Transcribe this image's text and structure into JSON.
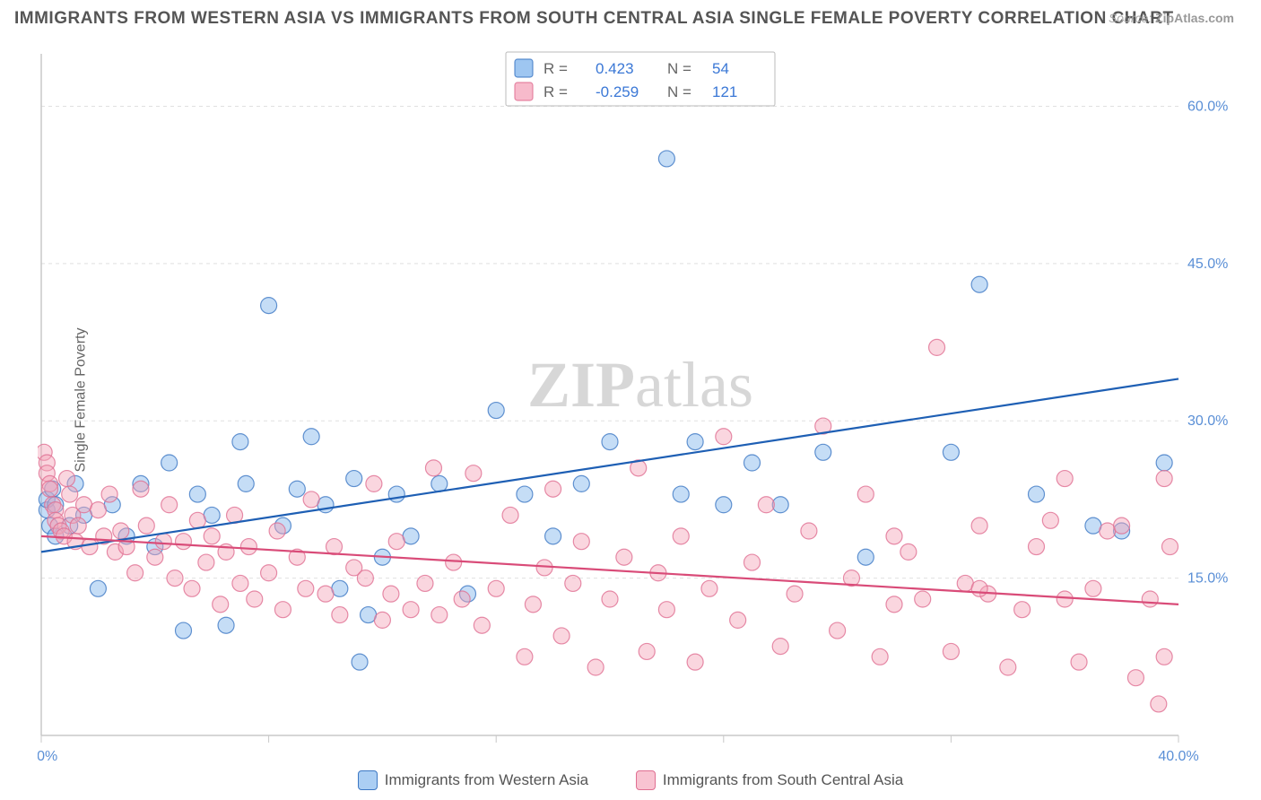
{
  "title": "IMMIGRANTS FROM WESTERN ASIA VS IMMIGRANTS FROM SOUTH CENTRAL ASIA SINGLE FEMALE POVERTY CORRELATION CHART",
  "source_label": "Source:",
  "source_value": "ZipAtlas.com",
  "ylabel": "Single Female Poverty",
  "watermark": "ZIPatlas",
  "chart": {
    "type": "scatter-with-regression",
    "background_color": "#ffffff",
    "grid_color": "#e0e0e0",
    "axis_color": "#c8c8c8",
    "xlim": [
      0,
      40
    ],
    "ylim": [
      0,
      65
    ],
    "x_ticks": [
      0,
      8,
      16,
      24,
      32,
      40
    ],
    "x_tick_labels": [
      "0.0%",
      "",
      "",
      "",
      "",
      "40.0%"
    ],
    "y_ticks": [
      15,
      30,
      45,
      60
    ],
    "y_tick_labels": [
      "15.0%",
      "30.0%",
      "45.0%",
      "60.0%"
    ],
    "marker_radius": 9,
    "series": [
      {
        "key": "A",
        "label": "Immigrants from Western Asia",
        "fill": "#7eb3ec",
        "stroke": "#3d78c4",
        "line_color": "#1e5fb4",
        "R": "0.423",
        "N": "54",
        "regression": {
          "x1": 0,
          "y1": 17.5,
          "x2": 40,
          "y2": 34.0
        },
        "points": [
          [
            0.2,
            21.5
          ],
          [
            0.2,
            22.5
          ],
          [
            0.3,
            20.0
          ],
          [
            0.4,
            23.5
          ],
          [
            0.5,
            22.0
          ],
          [
            0.5,
            19.0
          ],
          [
            1.0,
            20.0
          ],
          [
            1.2,
            24.0
          ],
          [
            1.5,
            21.0
          ],
          [
            2.0,
            14.0
          ],
          [
            2.5,
            22.0
          ],
          [
            3.0,
            19.0
          ],
          [
            3.5,
            24.0
          ],
          [
            4.0,
            18.0
          ],
          [
            4.5,
            26.0
          ],
          [
            5.0,
            10.0
          ],
          [
            5.5,
            23.0
          ],
          [
            6.0,
            21.0
          ],
          [
            6.5,
            10.5
          ],
          [
            7.0,
            28.0
          ],
          [
            7.2,
            24.0
          ],
          [
            8.0,
            41.0
          ],
          [
            8.5,
            20.0
          ],
          [
            9.0,
            23.5
          ],
          [
            9.5,
            28.5
          ],
          [
            10.0,
            22.0
          ],
          [
            10.5,
            14.0
          ],
          [
            11.0,
            24.5
          ],
          [
            11.2,
            7.0
          ],
          [
            11.5,
            11.5
          ],
          [
            12.0,
            17.0
          ],
          [
            12.5,
            23.0
          ],
          [
            13.0,
            19.0
          ],
          [
            14.0,
            24.0
          ],
          [
            15.0,
            13.5
          ],
          [
            16.0,
            31.0
          ],
          [
            17.0,
            23.0
          ],
          [
            18.0,
            19.0
          ],
          [
            19.0,
            24.0
          ],
          [
            20.0,
            28.0
          ],
          [
            22.0,
            55.0
          ],
          [
            22.5,
            23.0
          ],
          [
            23.0,
            28.0
          ],
          [
            24.0,
            22.0
          ],
          [
            25.0,
            26.0
          ],
          [
            26.0,
            22.0
          ],
          [
            27.5,
            27.0
          ],
          [
            29.0,
            17.0
          ],
          [
            32.0,
            27.0
          ],
          [
            33.0,
            43.0
          ],
          [
            35.0,
            23.0
          ],
          [
            37.0,
            20.0
          ],
          [
            38.0,
            19.5
          ],
          [
            39.5,
            26.0
          ]
        ]
      },
      {
        "key": "B",
        "label": "Immigrants from South Central Asia",
        "fill": "#f4a3b9",
        "stroke": "#e06f92",
        "line_color": "#d94b78",
        "R": "-0.259",
        "N": "121",
        "regression": {
          "x1": 0,
          "y1": 19.0,
          "x2": 40,
          "y2": 12.5
        },
        "points": [
          [
            0.1,
            27.0
          ],
          [
            0.2,
            26.0
          ],
          [
            0.2,
            25.0
          ],
          [
            0.3,
            24.0
          ],
          [
            0.3,
            23.5
          ],
          [
            0.4,
            22.0
          ],
          [
            0.5,
            21.5
          ],
          [
            0.5,
            20.5
          ],
          [
            0.6,
            20.0
          ],
          [
            0.7,
            19.5
          ],
          [
            0.8,
            19.0
          ],
          [
            0.9,
            24.5
          ],
          [
            1.0,
            23.0
          ],
          [
            1.1,
            21.0
          ],
          [
            1.2,
            18.5
          ],
          [
            1.3,
            20.0
          ],
          [
            1.5,
            22.0
          ],
          [
            1.7,
            18.0
          ],
          [
            2.0,
            21.5
          ],
          [
            2.2,
            19.0
          ],
          [
            2.4,
            23.0
          ],
          [
            2.6,
            17.5
          ],
          [
            2.8,
            19.5
          ],
          [
            3.0,
            18.0
          ],
          [
            3.3,
            15.5
          ],
          [
            3.5,
            23.5
          ],
          [
            3.7,
            20.0
          ],
          [
            4.0,
            17.0
          ],
          [
            4.3,
            18.5
          ],
          [
            4.5,
            22.0
          ],
          [
            4.7,
            15.0
          ],
          [
            5.0,
            18.5
          ],
          [
            5.3,
            14.0
          ],
          [
            5.5,
            20.5
          ],
          [
            5.8,
            16.5
          ],
          [
            6.0,
            19.0
          ],
          [
            6.3,
            12.5
          ],
          [
            6.5,
            17.5
          ],
          [
            6.8,
            21.0
          ],
          [
            7.0,
            14.5
          ],
          [
            7.3,
            18.0
          ],
          [
            7.5,
            13.0
          ],
          [
            8.0,
            15.5
          ],
          [
            8.3,
            19.5
          ],
          [
            8.5,
            12.0
          ],
          [
            9.0,
            17.0
          ],
          [
            9.3,
            14.0
          ],
          [
            9.5,
            22.5
          ],
          [
            10.0,
            13.5
          ],
          [
            10.3,
            18.0
          ],
          [
            10.5,
            11.5
          ],
          [
            11.0,
            16.0
          ],
          [
            11.4,
            15.0
          ],
          [
            11.7,
            24.0
          ],
          [
            12.0,
            11.0
          ],
          [
            12.3,
            13.5
          ],
          [
            12.5,
            18.5
          ],
          [
            13.0,
            12.0
          ],
          [
            13.5,
            14.5
          ],
          [
            13.8,
            25.5
          ],
          [
            14.0,
            11.5
          ],
          [
            14.5,
            16.5
          ],
          [
            14.8,
            13.0
          ],
          [
            15.2,
            25.0
          ],
          [
            15.5,
            10.5
          ],
          [
            16.0,
            14.0
          ],
          [
            16.5,
            21.0
          ],
          [
            17.0,
            7.5
          ],
          [
            17.3,
            12.5
          ],
          [
            17.7,
            16.0
          ],
          [
            18.0,
            23.5
          ],
          [
            18.3,
            9.5
          ],
          [
            18.7,
            14.5
          ],
          [
            19.0,
            18.5
          ],
          [
            19.5,
            6.5
          ],
          [
            20.0,
            13.0
          ],
          [
            20.5,
            17.0
          ],
          [
            21.0,
            25.5
          ],
          [
            21.3,
            8.0
          ],
          [
            21.7,
            15.5
          ],
          [
            22.0,
            12.0
          ],
          [
            22.5,
            19.0
          ],
          [
            23.0,
            7.0
          ],
          [
            23.5,
            14.0
          ],
          [
            24.0,
            28.5
          ],
          [
            24.5,
            11.0
          ],
          [
            25.0,
            16.5
          ],
          [
            25.5,
            22.0
          ],
          [
            26.0,
            8.5
          ],
          [
            26.5,
            13.5
          ],
          [
            27.0,
            19.5
          ],
          [
            27.5,
            29.5
          ],
          [
            28.0,
            10.0
          ],
          [
            28.5,
            15.0
          ],
          [
            29.0,
            23.0
          ],
          [
            29.5,
            7.5
          ],
          [
            30.0,
            12.5
          ],
          [
            30.5,
            17.5
          ],
          [
            31.0,
            13.0
          ],
          [
            31.5,
            37.0
          ],
          [
            32.0,
            8.0
          ],
          [
            32.5,
            14.5
          ],
          [
            33.0,
            20.0
          ],
          [
            33.3,
            13.5
          ],
          [
            34.0,
            6.5
          ],
          [
            34.5,
            12.0
          ],
          [
            35.0,
            18.0
          ],
          [
            35.5,
            20.5
          ],
          [
            36.0,
            24.5
          ],
          [
            36.5,
            7.0
          ],
          [
            37.0,
            14.0
          ],
          [
            37.5,
            19.5
          ],
          [
            38.0,
            20.0
          ],
          [
            38.5,
            5.5
          ],
          [
            39.0,
            13.0
          ],
          [
            39.3,
            3.0
          ],
          [
            39.5,
            24.5
          ],
          [
            39.5,
            7.5
          ],
          [
            39.7,
            18.0
          ],
          [
            36.0,
            13.0
          ],
          [
            33.0,
            14.0
          ],
          [
            30.0,
            19.0
          ]
        ]
      }
    ]
  },
  "stat_box": {
    "rows": [
      {
        "swatch": "A",
        "R_label": "R =",
        "R": "0.423",
        "N_label": "N =",
        "N": "54"
      },
      {
        "swatch": "B",
        "R_label": "R =",
        "R": "-0.259",
        "N_label": "N =",
        "N": "121"
      }
    ]
  }
}
